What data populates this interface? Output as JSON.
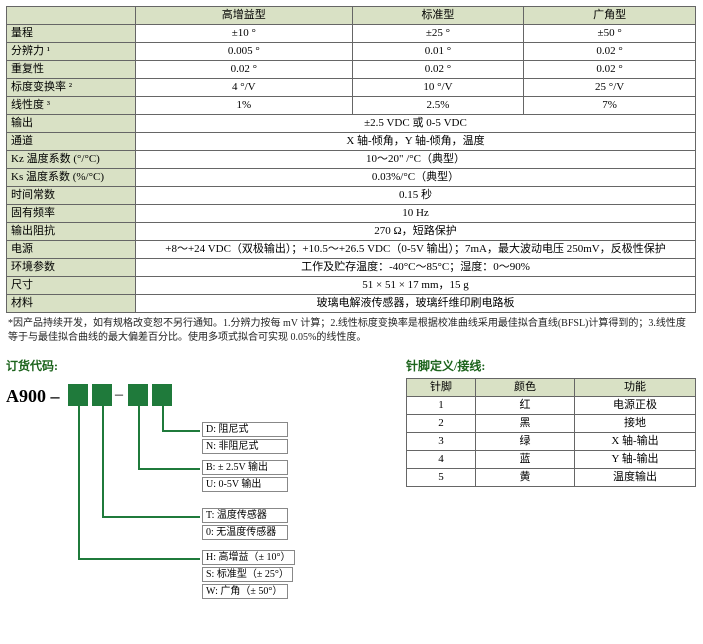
{
  "spec": {
    "headers": [
      "高增益型",
      "标准型",
      "广角型"
    ],
    "rows": [
      {
        "label": "量程",
        "cells": [
          "±10 °",
          "±25 °",
          "±50 °"
        ]
      },
      {
        "label": "分辨力 ¹",
        "cells": [
          "0.005 °",
          "0.01 °",
          "0.02 °"
        ]
      },
      {
        "label": "重复性",
        "cells": [
          "0.02 °",
          "0.02 °",
          "0.02 °"
        ]
      },
      {
        "label": "标度变换率 ²",
        "cells": [
          "4 °/V",
          "10 °/V",
          "25 °/V"
        ]
      },
      {
        "label": "线性度 ³",
        "cells": [
          "1%",
          "2.5%",
          "7%"
        ]
      },
      {
        "label": "输出",
        "span": "±2.5 VDC 或 0-5 VDC"
      },
      {
        "label": "通道",
        "span": "X 轴-倾角，Y 轴-倾角，温度"
      },
      {
        "label": "Kz 温度系数 (°/°C)",
        "span": "10～20\" /°C（典型）"
      },
      {
        "label": "Ks 温度系数 (%/°C)",
        "span": "0.03%/°C（典型）"
      },
      {
        "label": "时间常数",
        "span": "0.15 秒"
      },
      {
        "label": "固有频率",
        "span": "10 Hz"
      },
      {
        "label": "输出阻抗",
        "span": "270 Ω，短路保护"
      },
      {
        "label": "电源",
        "span": "+8～+24 VDC（双极输出）；+10.5～+26.5 VDC（0-5V 输出）；7mA，最大波动电压 250mV，反极性保护"
      },
      {
        "label": "环境参数",
        "span": "工作及贮存温度：-40°C～85°C；湿度：0～90%"
      },
      {
        "label": "尺寸",
        "span": "51 × 51 × 17 mm，15 g"
      },
      {
        "label": "材料",
        "span": "玻璃电解液传感器，玻璃纤维印刷电路板"
      }
    ]
  },
  "footnote": "*因产品持续开发，如有规格改变恕不另行通知。1.分辨力按每 mV 计算；2.线性标度变换率是根据校准曲线采用最佳拟合直线(BFSL)计算得到的；3.线性度等于与最佳拟合曲线的最大偏差百分比。使用多项式拟合可实现 0.05%的线性度。",
  "order": {
    "title": "订货代码:",
    "part": "A900 –",
    "groups": [
      {
        "items": [
          {
            "k": "D:",
            "t": "阻尼式"
          },
          {
            "k": "N:",
            "t": "非阻尼式"
          }
        ]
      },
      {
        "items": [
          {
            "k": "B:",
            "t": "± 2.5V 输出"
          },
          {
            "k": "U:",
            "t": "0-5V 输出"
          }
        ]
      },
      {
        "items": [
          {
            "k": "T:",
            "t": "温度传感器"
          },
          {
            "k": "0:",
            "t": "无温度传感器"
          }
        ]
      },
      {
        "items": [
          {
            "k": "H:",
            "t": "高增益（± 10°）"
          },
          {
            "k": "S:",
            "t": "标准型（± 25°）"
          },
          {
            "k": "W:",
            "t": "广角（± 50°）"
          }
        ]
      }
    ]
  },
  "pins": {
    "title": "针脚定义/接线:",
    "headers": [
      "针脚",
      "颜色",
      "功能"
    ],
    "rows": [
      [
        "1",
        "红",
        "电源正极"
      ],
      [
        "2",
        "黑",
        "接地"
      ],
      [
        "3",
        "绿",
        "X 轴-输出"
      ],
      [
        "4",
        "蓝",
        "Y 轴-输出"
      ],
      [
        "5",
        "黄",
        "温度输出"
      ]
    ]
  }
}
